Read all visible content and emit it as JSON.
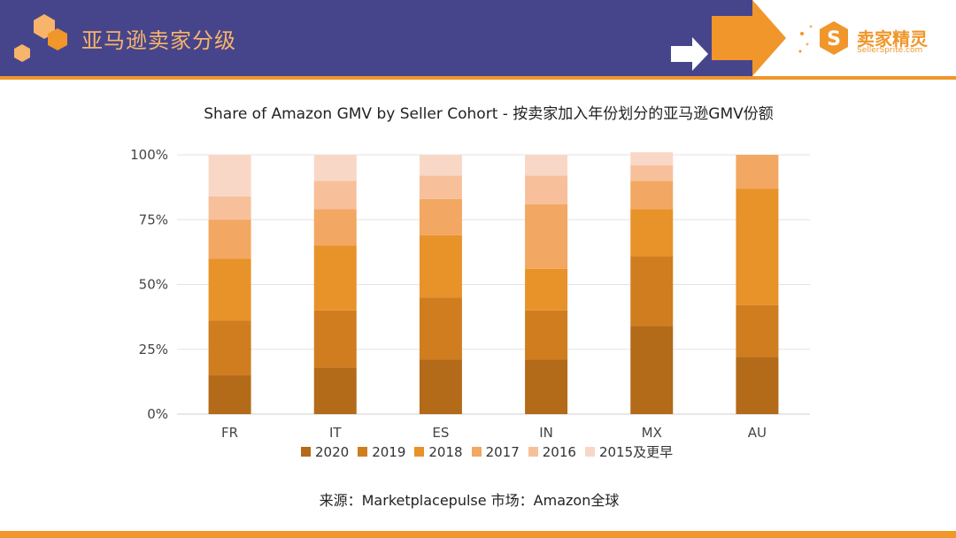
{
  "header": {
    "title": "亚马逊卖家分级",
    "logo_main": "卖家精灵",
    "logo_sub": "SellerSprite.com"
  },
  "colors": {
    "band": "#46458c",
    "accent": "#f0962a",
    "title": "#f7b46a",
    "series": [
      "#b36a19",
      "#cf7d1f",
      "#e8922a",
      "#f2a762",
      "#f7c09a",
      "#f9d7c6"
    ]
  },
  "footer": {
    "source": "来源：Marketplacepulse    市场：Amazon全球"
  },
  "chart_data": {
    "type": "bar",
    "stacked": true,
    "title": "Share of Amazon GMV by Seller Cohort - 按卖家加入年份划分的亚马逊GMV份额",
    "categories": [
      "FR",
      "IT",
      "ES",
      "IN",
      "MX",
      "AU"
    ],
    "yticks": [
      "0%",
      "25%",
      "50%",
      "75%",
      "100%"
    ],
    "ylim": [
      0,
      100
    ],
    "legend_position": "bottom",
    "series": [
      {
        "name": "2020",
        "values": [
          15,
          18,
          21,
          21,
          34,
          22
        ]
      },
      {
        "name": "2019",
        "values": [
          21,
          22,
          24,
          19,
          27,
          20
        ]
      },
      {
        "name": "2018",
        "values": [
          24,
          25,
          24,
          16,
          18,
          45
        ]
      },
      {
        "name": "2017",
        "values": [
          15,
          14,
          14,
          25,
          11,
          13
        ]
      },
      {
        "name": "2016",
        "values": [
          9,
          11,
          9,
          11,
          6,
          0
        ]
      },
      {
        "name": "2015及更早",
        "values": [
          16,
          10,
          8,
          8,
          5,
          0
        ]
      }
    ]
  }
}
